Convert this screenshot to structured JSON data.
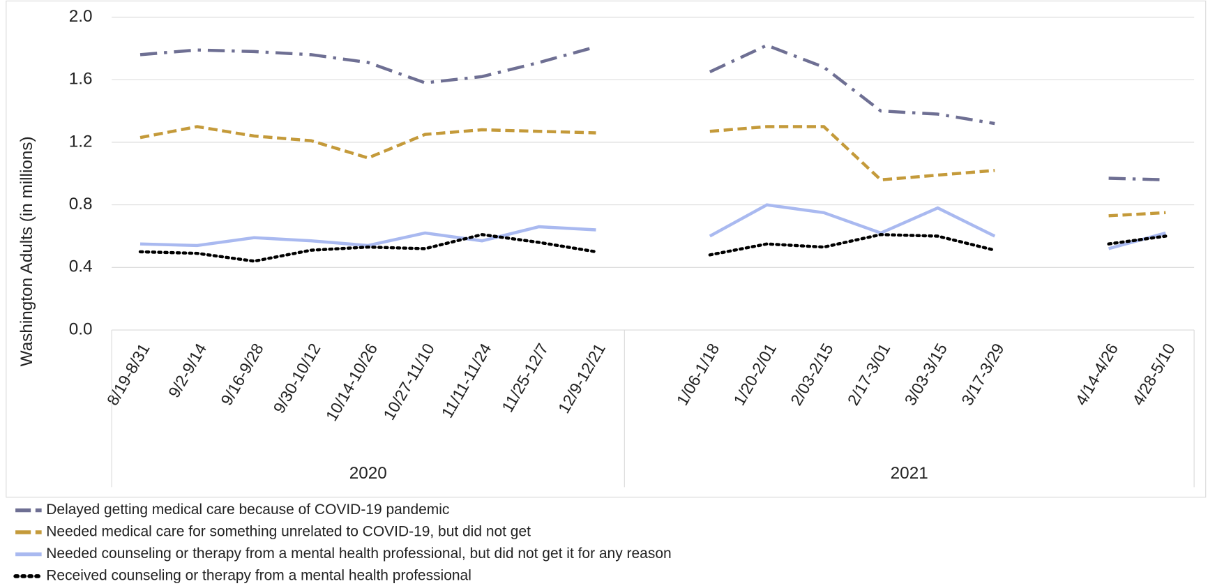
{
  "chart_data": {
    "type": "line",
    "y_label": "Washington Adults (in millions)",
    "categories": [
      "8/19-8/31",
      "9/2-9/14",
      "9/16-9/28",
      "9/30-10/12",
      "10/14-10/26",
      "10/27-11/10",
      "11/11-11/24",
      "11/25-12/7",
      "12/9-12/21",
      null,
      "1/06-1/18",
      "1/20-2/01",
      "2/03-2/15",
      "2/17-3/01",
      "3/03-3/15",
      "3/17-3/29",
      null,
      "4/14-4/26",
      "4/28-5/10"
    ],
    "groups": [
      {
        "name": "2020",
        "count": 9
      },
      {
        "name": "2021",
        "count": 10
      }
    ],
    "series": [
      {
        "name": "Delayed getting medical care because of COVID-19 pandemic",
        "color": "#6e6f93",
        "dash": "dashdot",
        "values": [
          1.76,
          1.79,
          1.78,
          1.76,
          1.71,
          1.58,
          1.62,
          1.71,
          1.81,
          null,
          1.65,
          1.82,
          1.68,
          1.4,
          1.38,
          1.32,
          null,
          0.97,
          0.96
        ]
      },
      {
        "name": "Needed medical care for something unrelated to COVID-19, but did not get",
        "color": "#c49a3a",
        "dash": "dashed",
        "values": [
          1.23,
          1.3,
          1.24,
          1.21,
          1.1,
          1.25,
          1.28,
          1.27,
          1.26,
          null,
          1.27,
          1.3,
          1.3,
          0.96,
          0.99,
          1.02,
          null,
          0.73,
          0.75
        ]
      },
      {
        "name": "Needed counseling or therapy from a mental health professional, but did not get it for any reason",
        "color": "#a9b9f0",
        "dash": "solid",
        "values": [
          0.55,
          0.54,
          0.59,
          0.57,
          0.54,
          0.62,
          0.57,
          0.66,
          0.64,
          null,
          0.6,
          0.8,
          0.75,
          0.62,
          0.78,
          0.6,
          null,
          0.52,
          0.62
        ]
      },
      {
        "name": "Received counseling or therapy from a mental health professional",
        "color": "#000000",
        "dash": "dotted",
        "values": [
          0.5,
          0.49,
          0.44,
          0.51,
          0.53,
          0.52,
          0.61,
          0.56,
          0.5,
          null,
          0.48,
          0.55,
          0.53,
          0.61,
          0.6,
          0.51,
          null,
          0.55,
          0.6
        ]
      }
    ],
    "ylim": [
      0,
      2
    ],
    "yticks": [
      {
        "value": 0,
        "label": "0.0"
      },
      0.4,
      0.8,
      1.2,
      1.6,
      {
        "value": 2,
        "label": "2.0"
      }
    ],
    "grid": true
  }
}
